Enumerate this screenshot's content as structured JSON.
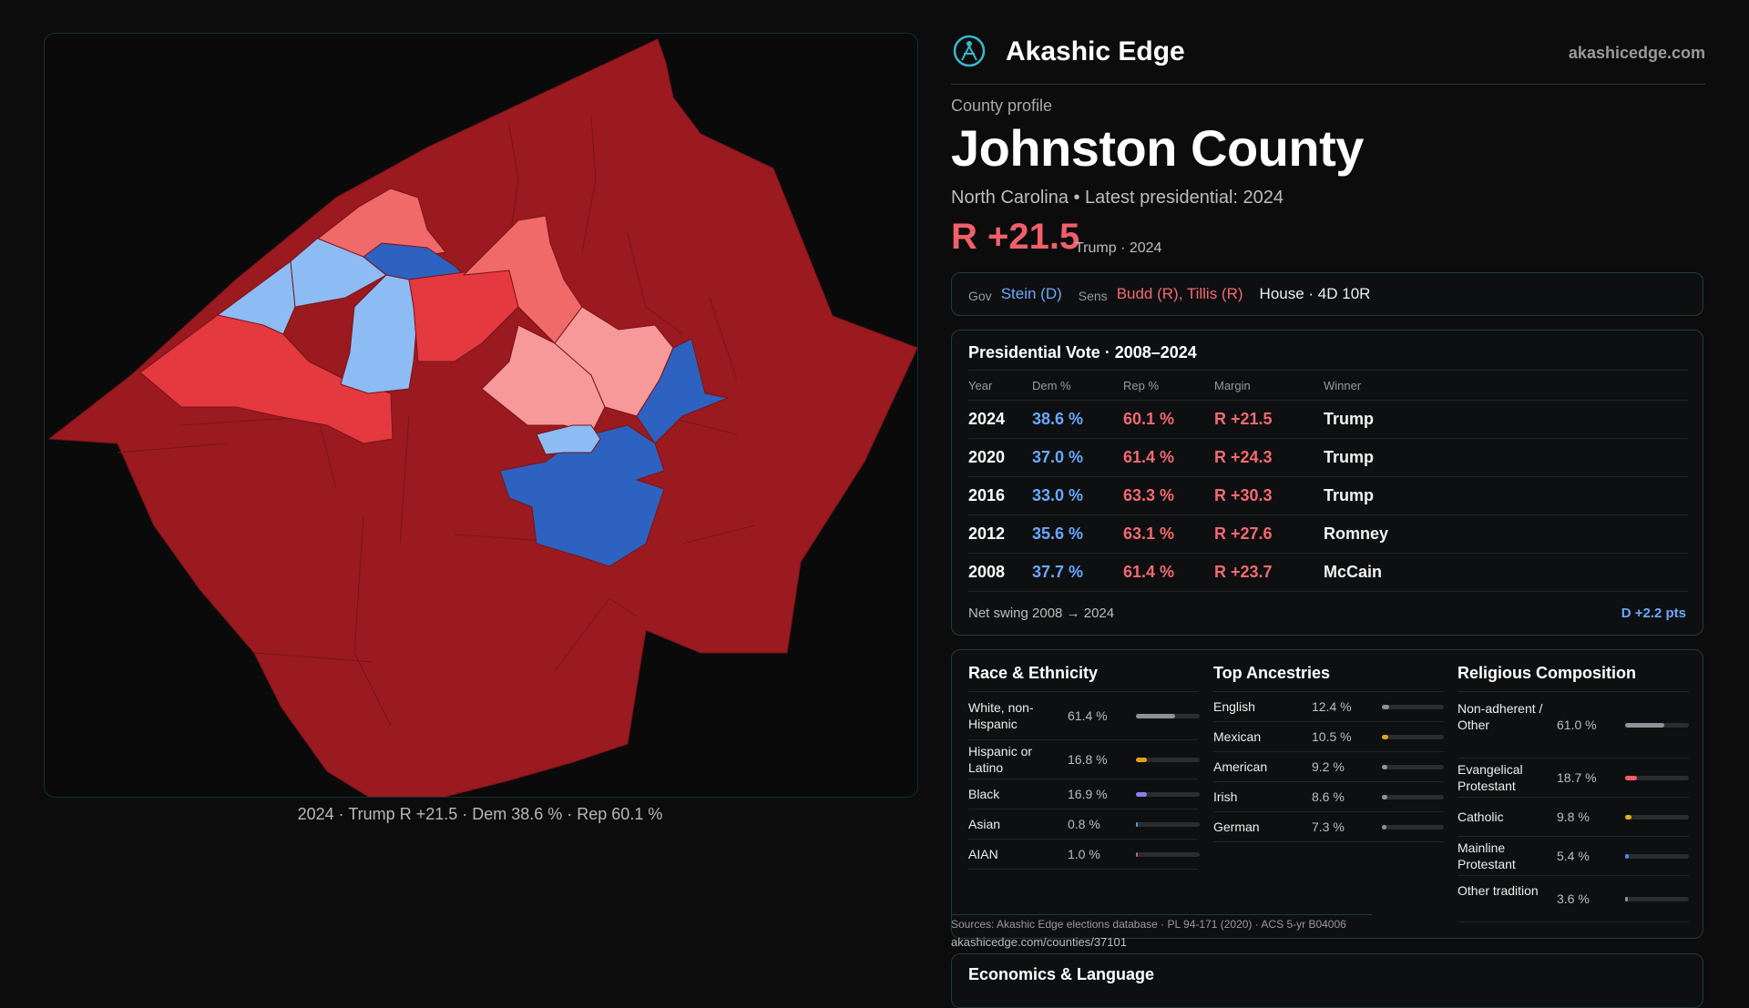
{
  "brand": {
    "name": "Akashic Edge",
    "site": "akashicedge.com"
  },
  "profile": {
    "kicker": "County profile",
    "county": "Johnston County",
    "subline": "North Carolina • Latest presidential: 2024",
    "margin": "R +21.5",
    "margin_note": "Trump · 2024"
  },
  "officials": {
    "gov_label": "Gov",
    "gov": "Stein (D)",
    "sens_label": "Sens",
    "sens": "Budd (R), Tillis (R)",
    "house": "House · 4D 10R"
  },
  "presidential": {
    "title": "Presidential Vote · 2008–2024",
    "headers": {
      "year": "Year",
      "dem": "Dem %",
      "rep": "Rep %",
      "margin": "Margin",
      "winner": "Winner"
    },
    "rows": [
      {
        "year": "2024",
        "dem": "38.6 %",
        "rep": "60.1 %",
        "margin": "R +21.5",
        "winner": "Trump"
      },
      {
        "year": "2020",
        "dem": "37.0 %",
        "rep": "61.4 %",
        "margin": "R +24.3",
        "winner": "Trump"
      },
      {
        "year": "2016",
        "dem": "33.0 %",
        "rep": "63.3 %",
        "margin": "R +30.3",
        "winner": "Trump"
      },
      {
        "year": "2012",
        "dem": "35.6 %",
        "rep": "63.1 %",
        "margin": "R +27.6",
        "winner": "Romney"
      },
      {
        "year": "2008",
        "dem": "37.7 %",
        "rep": "61.4 %",
        "margin": "R +23.7",
        "winner": "McCain"
      }
    ],
    "swing_label": "Net swing 2008 → 2024",
    "swing_value": "D +2.2 pts"
  },
  "race": {
    "title": "Race & Ethnicity",
    "rows": [
      {
        "name": "White, non-Hispanic",
        "pct": "61.4 %",
        "value": 61.4,
        "color": "#8e939b"
      },
      {
        "name": "Hispanic or Latino",
        "pct": "16.8 %",
        "value": 16.8,
        "color": "#e0a020"
      },
      {
        "name": "Black",
        "pct": "16.9 %",
        "value": 16.9,
        "color": "#8a7ef0"
      },
      {
        "name": "Asian",
        "pct": "0.8 %",
        "value": 0.8,
        "color": "#5aa0d0"
      },
      {
        "name": "AIAN",
        "pct": "1.0 %",
        "value": 1.0,
        "color": "#c06080"
      }
    ]
  },
  "ancestry": {
    "title": "Top Ancestries",
    "rows": [
      {
        "name": "English",
        "pct": "12.4 %",
        "value": 12.4,
        "color": "#8e939b"
      },
      {
        "name": "Mexican",
        "pct": "10.5 %",
        "value": 10.5,
        "color": "#e0a020"
      },
      {
        "name": "American",
        "pct": "9.2 %",
        "value": 9.2,
        "color": "#8e939b"
      },
      {
        "name": "Irish",
        "pct": "8.6 %",
        "value": 8.6,
        "color": "#8e939b"
      },
      {
        "name": "German",
        "pct": "7.3 %",
        "value": 7.3,
        "color": "#8e939b"
      }
    ]
  },
  "religion": {
    "title": "Religious Composition",
    "rows": [
      {
        "name": "Non-adherent / Other",
        "pct": "61.0 %",
        "value": 61.0,
        "color": "#8e939b"
      },
      {
        "name": "Evangelical Protestant",
        "pct": "18.7 %",
        "value": 18.7,
        "color": "#f0606a"
      },
      {
        "name": "Catholic",
        "pct": "9.8 %",
        "value": 9.8,
        "color": "#e0b020"
      },
      {
        "name": "Mainline Protestant",
        "pct": "5.4 %",
        "value": 5.4,
        "color": "#4a8af0"
      },
      {
        "name": "Other tradition",
        "pct": "3.6 %",
        "value": 3.6,
        "color": "#8e939b"
      }
    ]
  },
  "sources": {
    "text": "Sources: Akashic Edge elections database · PL 94-171 (2020) · ACS 5-yr B04006",
    "url": "akashicedge.com/counties/37101"
  },
  "economics": {
    "title": "Economics & Language"
  },
  "map": {
    "caption": "2024 · Trump R +21.5 · Dem 38.6 % · Rep 60.1 %",
    "colors": {
      "strong_rep": "#9a1a1f",
      "rep": "#e4393f",
      "lean_rep": "#f06a6a",
      "tilt_rep": "#f7999a",
      "strong_dem": "#2d62c0",
      "lean_dem": "#8dbcf5"
    }
  }
}
